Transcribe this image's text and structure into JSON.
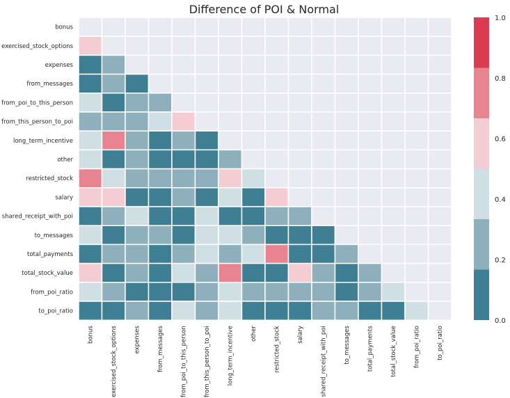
{
  "chart_data": {
    "type": "heatmap",
    "title": "Difference of POI & Normal",
    "labels": [
      "bonus",
      "exercised_stock_options",
      "expenses",
      "from_messages",
      "from_poi_to_this_person",
      "from_this_person_to_poi",
      "long_term_incentive",
      "other",
      "restricted_stock",
      "salary",
      "shared_receipt_with_poi",
      "to_messages",
      "total_payments",
      "total_stock_value",
      "from_poi_ratio",
      "to_poi_ratio"
    ],
    "mask": "upper-triangle-including-diagonal",
    "values": [
      [],
      [
        0.55
      ],
      [
        0.1,
        0.3
      ],
      [
        0.1,
        0.3,
        0.1
      ],
      [
        0.4,
        0.1,
        0.3,
        0.3
      ],
      [
        0.3,
        0.3,
        0.3,
        0.4,
        0.6
      ],
      [
        0.4,
        0.7,
        0.3,
        0.1,
        0.3,
        0.1
      ],
      [
        0.4,
        0.1,
        0.3,
        0.1,
        0.1,
        0.1,
        0.3
      ],
      [
        0.7,
        0.4,
        0.3,
        0.3,
        0.3,
        0.3,
        0.6,
        0.4
      ],
      [
        0.55,
        0.55,
        0.1,
        0.1,
        0.3,
        0.1,
        0.4,
        0.1,
        0.55
      ],
      [
        0.1,
        0.3,
        0.4,
        0.1,
        0.1,
        0.4,
        0.1,
        0.1,
        0.3,
        0.3
      ],
      [
        0.4,
        0.1,
        0.3,
        0.3,
        0.1,
        0.4,
        0.4,
        0.3,
        0.1,
        0.1,
        0.1
      ],
      [
        0.1,
        0.3,
        0.3,
        0.1,
        0.3,
        0.4,
        0.3,
        0.4,
        0.7,
        0.1,
        0.1,
        0.3
      ],
      [
        0.55,
        0.1,
        0.3,
        0.1,
        0.4,
        0.3,
        0.7,
        0.1,
        0.1,
        0.55,
        0.3,
        0.1,
        0.3
      ],
      [
        0.4,
        0.3,
        0.1,
        0.1,
        0.1,
        0.3,
        0.4,
        0.3,
        0.3,
        0.3,
        0.3,
        0.1,
        0.3,
        0.4
      ],
      [
        0.1,
        0.1,
        0.3,
        0.1,
        0.4,
        0.3,
        0.4,
        0.1,
        0.1,
        0.1,
        0.3,
        0.3,
        0.1,
        0.1,
        0.4
      ]
    ],
    "colorbar": {
      "range": [
        0.0,
        1.0
      ],
      "ticks": [
        "0.0",
        "0.2",
        "0.4",
        "0.6",
        "0.8",
        "1.0"
      ],
      "bins": [
        {
          "from": 0.0,
          "to": 0.1667,
          "color": "#3f7f93"
        },
        {
          "from": 0.1667,
          "to": 0.3333,
          "color": "#8db0bc"
        },
        {
          "from": 0.3333,
          "to": 0.5,
          "color": "#d0dfe4"
        },
        {
          "from": 0.5,
          "to": 0.6667,
          "color": "#f4cdd3"
        },
        {
          "from": 0.6667,
          "to": 0.8333,
          "color": "#e8848f"
        },
        {
          "from": 0.8333,
          "to": 1.0,
          "color": "#da3b50"
        }
      ]
    },
    "colors": {
      "masked": "#eaeaf2",
      "cell_border": "#ffffff",
      "text": "#262626"
    }
  }
}
